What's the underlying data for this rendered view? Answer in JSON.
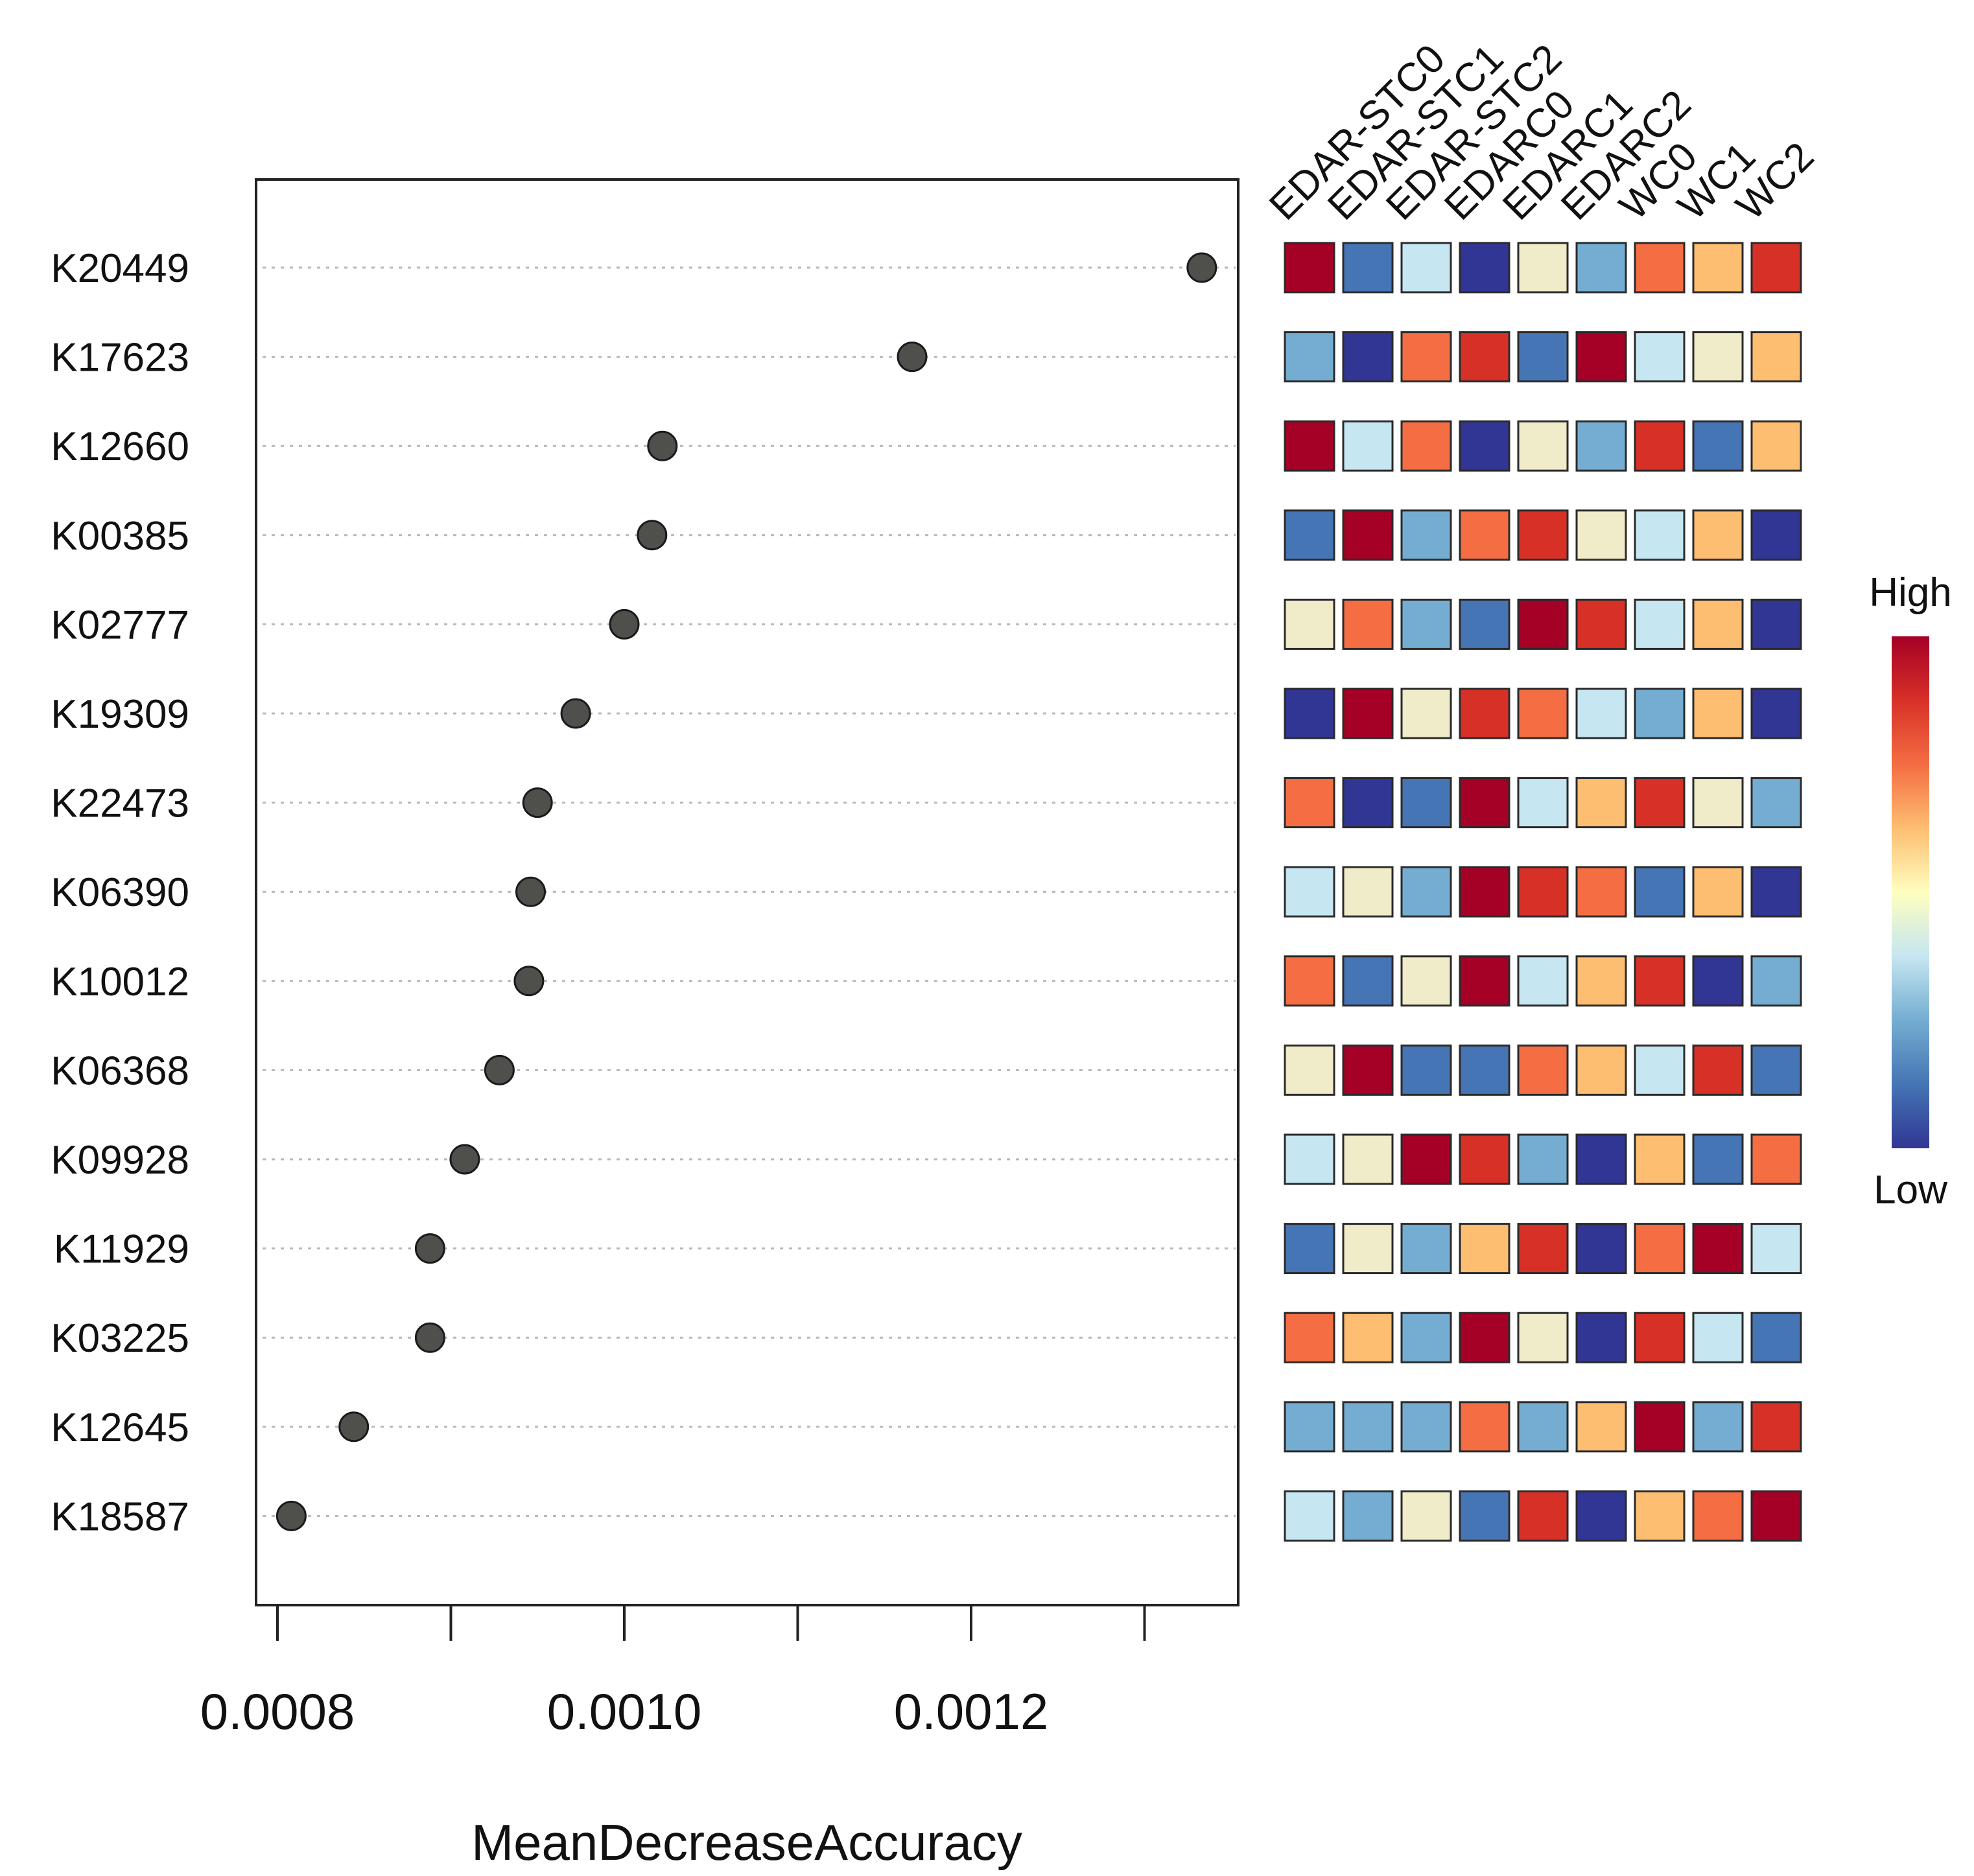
{
  "chart_data": [
    {
      "type": "scatter",
      "subtype": "dot-plot",
      "xlabel": "MeanDecreaseAccuracy",
      "ylabel": "",
      "xlim": [
        0.00077,
        0.001335
      ],
      "xticks": [
        0.0008,
        0.0009,
        0.001,
        0.0011,
        0.0012,
        0.0013
      ],
      "xtick_labels": [
        "0.0008",
        "",
        "0.0010",
        "",
        "0.0012",
        ""
      ],
      "grid": "horizontal dotted",
      "point_color": "#4f4f4b",
      "categories": [
        "K20449",
        "K17623",
        "K12660",
        "K00385",
        "K02777",
        "K19309",
        "K22473",
        "K06390",
        "K10012",
        "K06368",
        "K09928",
        "K11929",
        "K03225",
        "K12645",
        "K18587"
      ],
      "values": [
        0.001333,
        0.001166,
        0.001022,
        0.001016,
        0.001,
        0.000972,
        0.00095,
        0.000946,
        0.000945,
        0.000928,
        0.000908,
        0.000888,
        0.000888,
        0.000844,
        0.000808
      ]
    },
    {
      "type": "heatmap",
      "columns": [
        "EDAR-STC0",
        "EDAR-STC1",
        "EDAR-STC2",
        "EDARC0",
        "EDARC1",
        "EDARC2",
        "WC0",
        "WC1",
        "WC2"
      ],
      "rows": [
        "K20449",
        "K17623",
        "K12660",
        "K00385",
        "K02777",
        "K19309",
        "K22473",
        "K06390",
        "K10012",
        "K06368",
        "K09928",
        "K11929",
        "K03225",
        "K12645",
        "K18587"
      ],
      "scale": "rank 1 (low) to 9 (high)",
      "matrix": [
        [
          9,
          2,
          4,
          1,
          5,
          3,
          7,
          6,
          8
        ],
        [
          3,
          1,
          7,
          8,
          2,
          9,
          4,
          5,
          6
        ],
        [
          9,
          4,
          7,
          1,
          5,
          3,
          8,
          2,
          6
        ],
        [
          2,
          9,
          3,
          7,
          8,
          5,
          4,
          6,
          1
        ],
        [
          5,
          7,
          3,
          2,
          9,
          8,
          4,
          6,
          1
        ],
        [
          1,
          9,
          5,
          8,
          7,
          4,
          3,
          6,
          1
        ],
        [
          7,
          1,
          2,
          9,
          4,
          6,
          8,
          5,
          3
        ],
        [
          4,
          5,
          3,
          9,
          8,
          7,
          2,
          6,
          1
        ],
        [
          7,
          2,
          5,
          9,
          4,
          6,
          8,
          1,
          3
        ],
        [
          5,
          9,
          2,
          2,
          7,
          6,
          4,
          8,
          2
        ],
        [
          4,
          5,
          9,
          8,
          3,
          1,
          6,
          2,
          7
        ],
        [
          2,
          5,
          3,
          6,
          8,
          1,
          7,
          9,
          4
        ],
        [
          7,
          6,
          3,
          9,
          5,
          1,
          8,
          4,
          2
        ],
        [
          3,
          3,
          3,
          7,
          3,
          6,
          9,
          3,
          8
        ],
        [
          4,
          3,
          5,
          2,
          8,
          1,
          6,
          7,
          9
        ]
      ],
      "palette": [
        "#313695",
        "#4575b4",
        "#74add1",
        "#c6e6f1",
        "#f0ebc8",
        "#fdbe71",
        "#f46d43",
        "#d73027",
        "#a50026"
      ],
      "legend": {
        "high_label": "High",
        "low_label": "Low",
        "position": "right"
      }
    }
  ]
}
